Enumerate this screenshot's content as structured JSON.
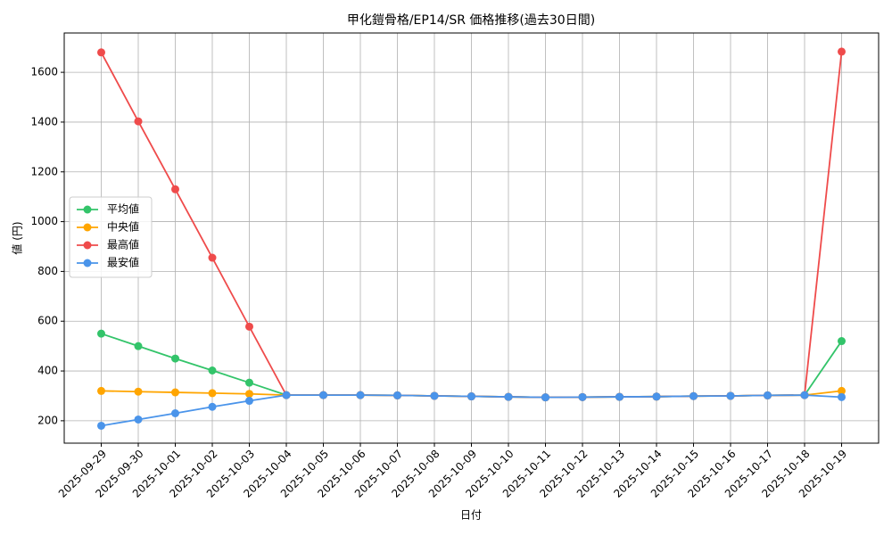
{
  "chart_data": {
    "type": "line",
    "title": "甲化鎧骨格/EP14/SR 価格推移(過去30日間)",
    "x_label": "日付",
    "y_label": "値 (円)",
    "categories": [
      "2025-09-29",
      "2025-09-30",
      "2025-10-01",
      "2025-10-02",
      "2025-10-03",
      "2025-10-04",
      "2025-10-05",
      "2025-10-06",
      "2025-10-07",
      "2025-10-08",
      "2025-10-09",
      "2025-10-10",
      "2025-10-11",
      "2025-10-12",
      "2025-10-13",
      "2025-10-14",
      "2025-10-15",
      "2025-10-16",
      "2025-10-17",
      "2025-10-18",
      "2025-10-19"
    ],
    "series": [
      {
        "name": "平均値",
        "color": "#33c46a",
        "values": [
          550,
          500,
          450,
          402,
          353,
          303,
          303,
          303,
          302,
          300,
          298,
          296,
          294,
          295,
          296,
          297,
          299,
          300,
          302,
          303,
          520
        ]
      },
      {
        "name": "中央値",
        "color": "#ffa500",
        "values": [
          320,
          317,
          314,
          311,
          308,
          303,
          303,
          303,
          302,
          300,
          298,
          296,
          294,
          295,
          296,
          297,
          299,
          300,
          302,
          303,
          320
        ]
      },
      {
        "name": "最高値",
        "color": "#ef4b4b",
        "values": [
          1680,
          1403,
          1130,
          855,
          578,
          303,
          303,
          303,
          302,
          300,
          298,
          296,
          294,
          295,
          296,
          297,
          299,
          300,
          302,
          303,
          1683
        ]
      },
      {
        "name": "最安値",
        "color": "#4a94ea",
        "values": [
          180,
          205,
          230,
          256,
          280,
          303,
          303,
          303,
          302,
          300,
          298,
          296,
          294,
          295,
          296,
          297,
          299,
          300,
          302,
          303,
          295
        ]
      }
    ],
    "ylim": [
      110,
      1758
    ],
    "yticks": [
      200,
      400,
      600,
      800,
      1000,
      1200,
      1400,
      1600
    ],
    "grid": true,
    "legend": "center left"
  }
}
